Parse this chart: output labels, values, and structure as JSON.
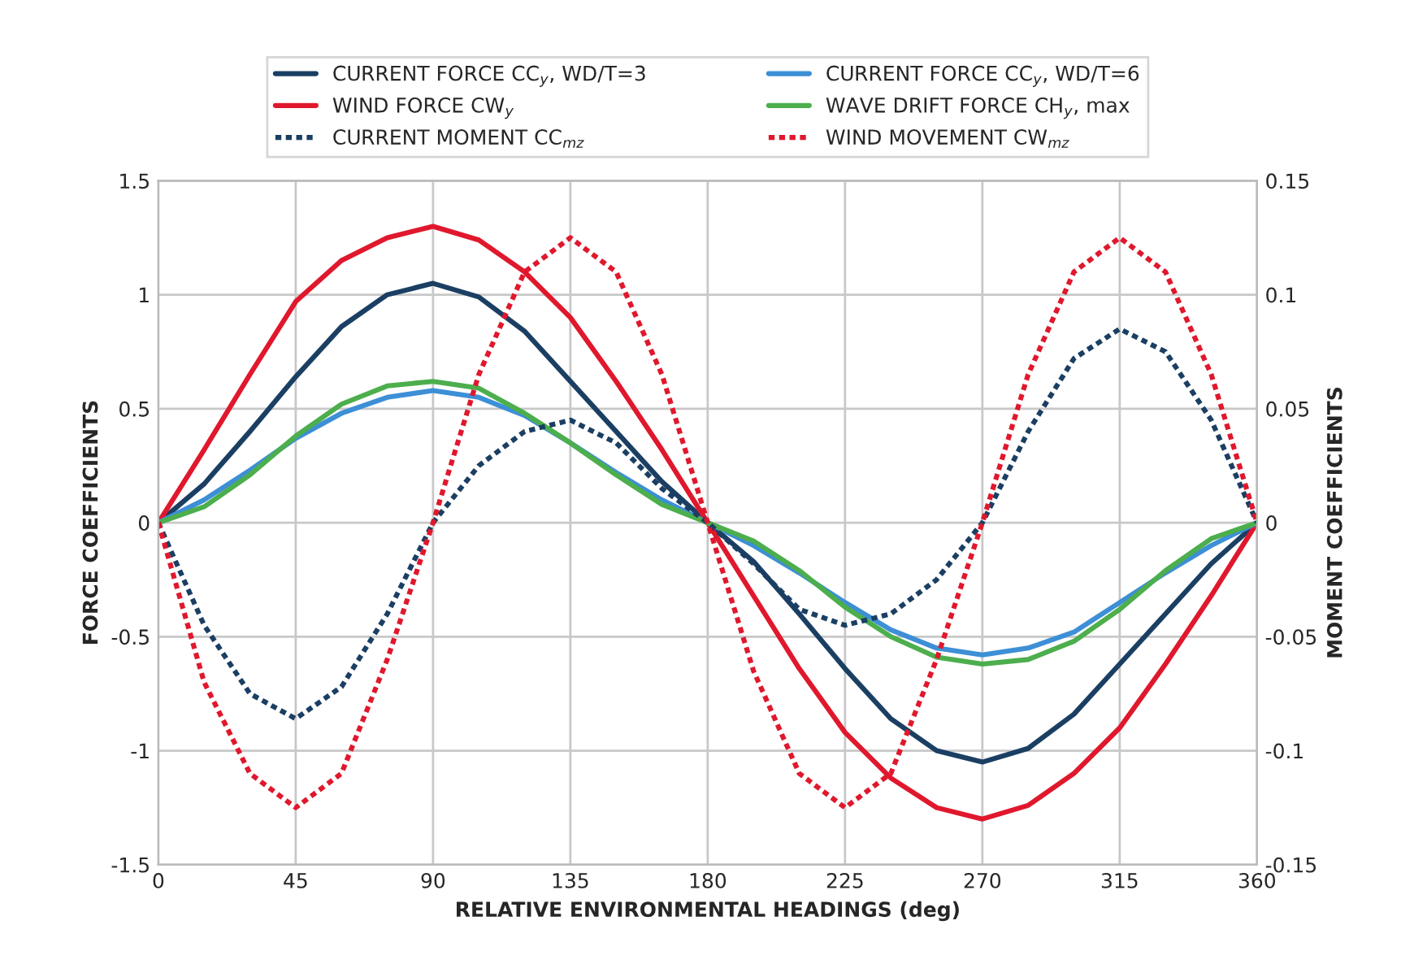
{
  "chart_data": {
    "type": "line",
    "xlabel": "RELATIVE ENVIRONMENTAL HEADINGS (deg)",
    "ylabel": "FORCE COEFFICIENTS",
    "y2label": "MOMENT COEFFICIENTS",
    "x": [
      0,
      15,
      30,
      45,
      60,
      75,
      90,
      105,
      120,
      135,
      150,
      165,
      180,
      195,
      210,
      225,
      240,
      255,
      270,
      285,
      300,
      315,
      330,
      345,
      360
    ],
    "xlim": [
      0,
      360
    ],
    "xticks": [
      0,
      45,
      90,
      135,
      180,
      225,
      270,
      315,
      360
    ],
    "ylim": [
      -1.5,
      1.5
    ],
    "yticks": [
      {
        "value": -1.5,
        "label": "-1.5"
      },
      {
        "value": -1,
        "label": "-1"
      },
      {
        "value": -0.5,
        "label": "-0.5"
      },
      0,
      0.5,
      1,
      1.5
    ],
    "y2lim": [
      -0.15,
      0.15
    ],
    "y2ticks": [
      {
        "value": -0.15,
        "label": "-0.15"
      },
      {
        "value": -0.1,
        "label": "-0.1"
      },
      {
        "value": -0.05,
        "label": "-0.05"
      },
      0,
      0.05,
      0.1,
      0.15
    ],
    "grid": true,
    "legend": "top",
    "series": [
      {
        "name": "CURRENT FORCE CC$_{y}$, WD/T=3",
        "color": "#1b3f63",
        "line_style": "solid",
        "values": [
          0,
          0.17,
          0.4,
          0.64,
          0.86,
          1.0,
          1.05,
          0.99,
          0.84,
          0.62,
          0.4,
          0.18,
          0,
          -0.17,
          -0.4,
          -0.64,
          -0.86,
          -1.0,
          -1.05,
          -0.99,
          -0.84,
          -0.62,
          -0.4,
          -0.18,
          0
        ]
      },
      {
        "name": "WIND FORCE CW$_{y}$",
        "color": "#e0182d",
        "line_style": "solid",
        "values": [
          0,
          0.32,
          0.65,
          0.97,
          1.15,
          1.25,
          1.3,
          1.24,
          1.1,
          0.9,
          0.62,
          0.32,
          0,
          -0.32,
          -0.64,
          -0.92,
          -1.12,
          -1.25,
          -1.3,
          -1.24,
          -1.1,
          -0.9,
          -0.62,
          -0.32,
          0
        ]
      },
      {
        "name": "CURRENT MOMENT CC$_{mz}$",
        "color": "#1b3f63",
        "line_style": "dotted",
        "axis": "y2",
        "values": [
          0,
          -0.045,
          -0.075,
          -0.086,
          -0.072,
          -0.04,
          0,
          0.025,
          0.04,
          0.045,
          0.035,
          0.015,
          0,
          -0.018,
          -0.038,
          -0.045,
          -0.04,
          -0.025,
          0,
          0.04,
          0.072,
          0.085,
          0.075,
          0.045,
          0
        ]
      },
      {
        "name": "CURRENT FORCE CC$_{y}$, WD/T=6",
        "color": "#3d8fd6",
        "line_style": "solid",
        "values": [
          0,
          0.1,
          0.23,
          0.37,
          0.48,
          0.55,
          0.58,
          0.55,
          0.47,
          0.35,
          0.22,
          0.1,
          0,
          -0.1,
          -0.22,
          -0.35,
          -0.47,
          -0.55,
          -0.58,
          -0.55,
          -0.48,
          -0.35,
          -0.22,
          -0.1,
          0
        ]
      },
      {
        "name": "WAVE DRIFT FORCE CH$_{y}$, max",
        "color": "#4cae4c",
        "line_style": "solid",
        "values": [
          0,
          0.07,
          0.21,
          0.38,
          0.52,
          0.6,
          0.62,
          0.59,
          0.48,
          0.35,
          0.21,
          0.08,
          0,
          -0.08,
          -0.21,
          -0.37,
          -0.5,
          -0.59,
          -0.62,
          -0.6,
          -0.52,
          -0.38,
          -0.21,
          -0.07,
          0
        ]
      },
      {
        "name": "WIND MOVEMENT CW$_{mz}$",
        "color": "#e0182d",
        "line_style": "dotted",
        "axis": "y2",
        "values": [
          0,
          -0.07,
          -0.11,
          -0.125,
          -0.11,
          -0.06,
          0,
          0.065,
          0.11,
          0.125,
          0.11,
          0.065,
          0,
          -0.065,
          -0.11,
          -0.125,
          -0.11,
          -0.06,
          0,
          0.065,
          0.11,
          0.125,
          0.11,
          0.065,
          0
        ]
      }
    ]
  }
}
